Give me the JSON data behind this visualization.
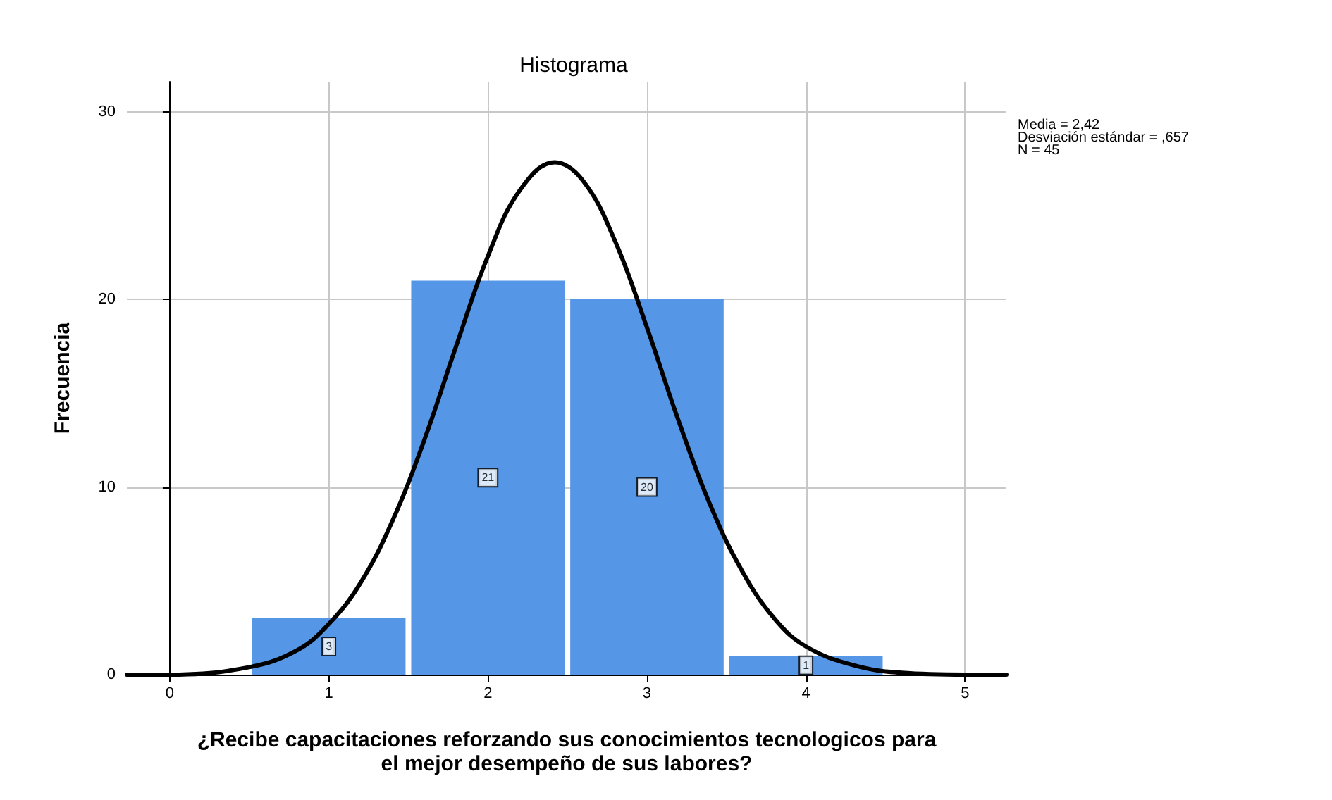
{
  "chart_data": {
    "type": "histogram",
    "title": "Histograma",
    "xlabel": "¿Recibe capacitaciones reforzando sus conocimientos tecnologicos para\nel mejor desempeño de sus labores?",
    "ylabel": "Frecuencia",
    "bins": [
      0.5,
      1.5,
      2.5,
      3.5,
      4.5
    ],
    "values": [
      3,
      21,
      20,
      1
    ],
    "color": "#5596e6",
    "value_labels": [
      "3",
      "21",
      "20",
      "1"
    ],
    "series": [
      {
        "type": "line",
        "color": "#000000",
        "x": [
          -0.27,
          0,
          0.5,
          0.8,
          1.0,
          1.2,
          1.4,
          1.6,
          1.8,
          2.0,
          2.2,
          2.42,
          2.6,
          2.8,
          3.0,
          3.2,
          3.4,
          3.6,
          3.8,
          4.0,
          4.3,
          4.6,
          5.0,
          5.26
        ],
        "values": [
          0,
          0,
          0.4,
          1.3,
          2.7,
          4.9,
          8.2,
          12.5,
          17.5,
          22.3,
          25.8,
          27.3,
          26.3,
          23.1,
          18.5,
          13.5,
          9.0,
          5.5,
          3.0,
          1.5,
          0.5,
          0.1,
          0,
          0
        ]
      }
    ],
    "xlim": [
      -0.27,
      5.26
    ],
    "xticks": [
      0,
      1,
      2,
      3,
      4,
      5
    ],
    "ylim": [
      0,
      31.6
    ],
    "yticks": [
      0,
      10,
      20,
      30
    ],
    "grid": true,
    "marker": "none",
    "annotations": [
      "Media = 2,42",
      "Desviación estándar = ,657",
      "N = 45"
    ]
  }
}
